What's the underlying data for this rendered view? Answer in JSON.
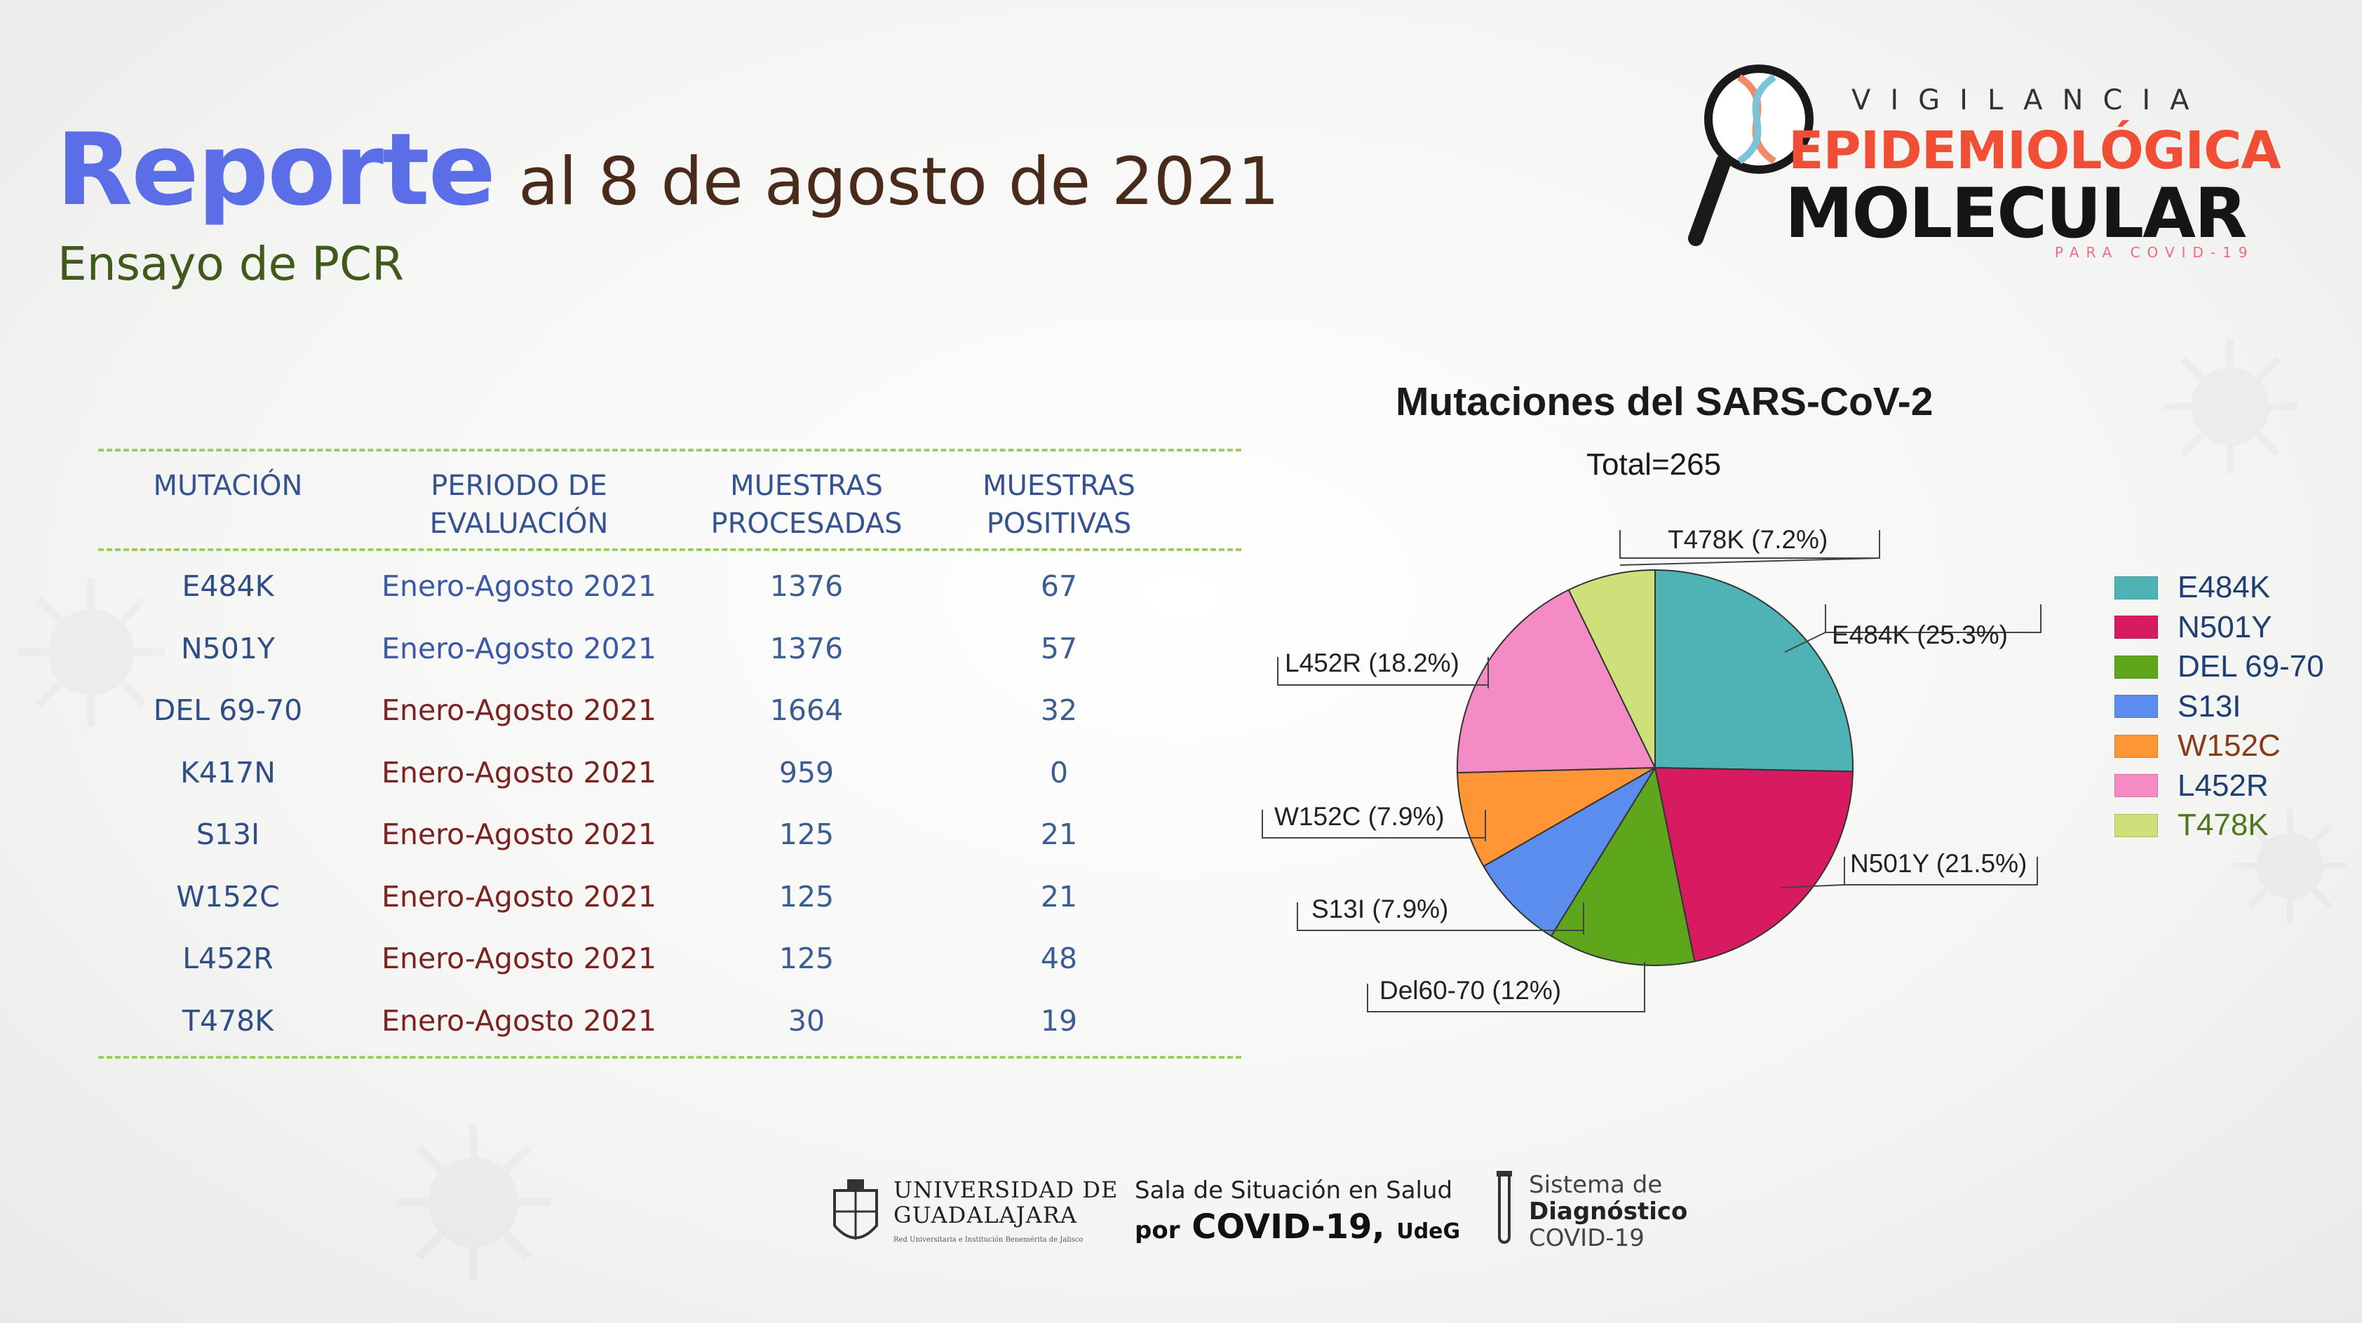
{
  "header": {
    "title_highlight": "Reporte",
    "title_rest": "al 8 de agosto de 2021",
    "subtitle": "Ensayo de PCR"
  },
  "logo": {
    "line1": "VIGILANCIA",
    "line2": "EPIDEMIOLÓGICA",
    "line3": "MOLECULAR",
    "line4": "PARA COVID-19"
  },
  "table": {
    "headers": [
      [
        "MUTACIÓN"
      ],
      [
        "PERIODO DE",
        "EVALUACIÓN"
      ],
      [
        "MUESTRAS",
        "PROCESADAS"
      ],
      [
        "MUESTRAS",
        "POSITIVAS"
      ]
    ],
    "rows": [
      {
        "mutacion": "E484K",
        "periodo": "Enero-Agosto 2021",
        "procesadas": "1376",
        "positivas": "67"
      },
      {
        "mutacion": "N501Y",
        "periodo": "Enero-Agosto 2021",
        "procesadas": "1376",
        "positivas": "57"
      },
      {
        "mutacion": "DEL 69-70",
        "periodo": "Enero-Agosto 2021",
        "procesadas": "1664",
        "positivas": "32"
      },
      {
        "mutacion": "K417N",
        "periodo": "Enero-Agosto 2021",
        "procesadas": "959",
        "positivas": "0"
      },
      {
        "mutacion": "S13I",
        "periodo": "Enero-Agosto 2021",
        "procesadas": "125",
        "positivas": "21"
      },
      {
        "mutacion": "W152C",
        "periodo": "Enero-Agosto 2021",
        "procesadas": "125",
        "positivas": "21"
      },
      {
        "mutacion": "L452R",
        "periodo": "Enero-Agosto 2021",
        "procesadas": "125",
        "positivas": "48"
      },
      {
        "mutacion": "T478K",
        "periodo": "Enero-Agosto 2021",
        "procesadas": "30",
        "positivas": "19"
      }
    ]
  },
  "chart_data": {
    "type": "pie",
    "title": "Mutaciones del SARS-CoV-2",
    "subtitle": "Total=265",
    "slices": [
      {
        "name": "E484K",
        "label": "E484K (25.3%)",
        "value": 25.3,
        "color": "#4fb3b6"
      },
      {
        "name": "N501Y",
        "label": "N501Y (21.5%)",
        "value": 21.5,
        "color": "#d81b60"
      },
      {
        "name": "DEL 69-70",
        "label": "Del60-70 (12%)",
        "value": 12.0,
        "color": "#5ea61b"
      },
      {
        "name": "S13I",
        "label": "S13I (7.9%)",
        "value": 7.9,
        "color": "#5b8def"
      },
      {
        "name": "W152C",
        "label": "W152C (7.9%)",
        "value": 7.9,
        "color": "#ff9535"
      },
      {
        "name": "L452R",
        "label": "L452R (18.2%)",
        "value": 18.2,
        "color": "#f58bc5"
      },
      {
        "name": "T478K",
        "label": "T478K (7.2%)",
        "value": 7.2,
        "color": "#cde07a"
      }
    ],
    "legend": {
      "placement": "right",
      "items": [
        "E484K",
        "N501Y",
        "DEL 69-70",
        "S13I",
        "W152C",
        "L452R",
        "T478K"
      ]
    }
  },
  "footer": {
    "udg_line1": "UNIVERSIDAD DE",
    "udg_line2": "GUADALAJARA",
    "udg_sub": "Red Universitaria e Institución Benemérita de Jalisco",
    "sala_line1": "Sala de Situación en Salud",
    "sala_por": "por",
    "sala_covid": "COVID-19",
    "sala_udeg": "UdeG",
    "sis_line1": "Sistema de",
    "sis_line2": "Diagnóstico",
    "sis_line3": "COVID-19"
  }
}
